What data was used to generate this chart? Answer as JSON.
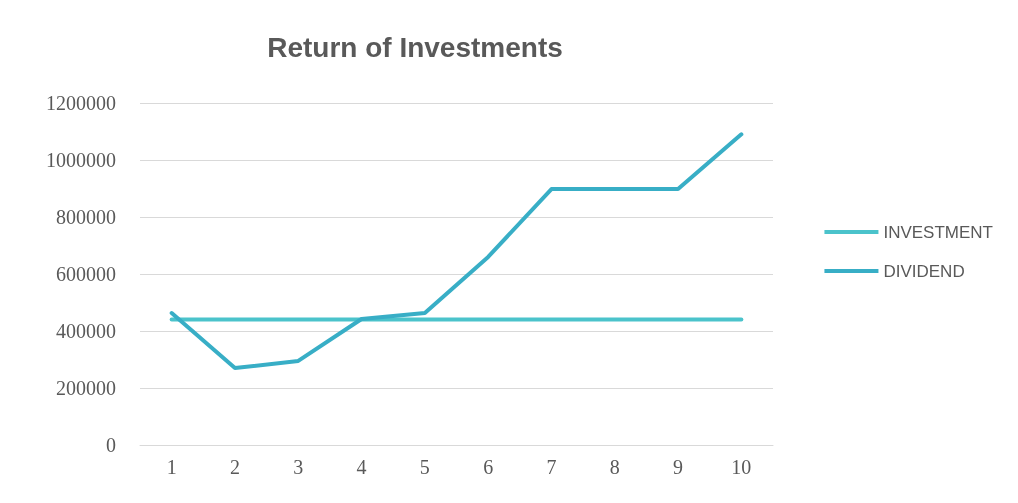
{
  "chart_data": {
    "type": "line",
    "title": "Return of Investments",
    "categories": [
      "1",
      "2",
      "3",
      "4",
      "5",
      "6",
      "7",
      "8",
      "9",
      "10"
    ],
    "series": [
      {
        "name": "INVESTMENT",
        "color": "#4bc3cb",
        "values": [
          440000,
          440000,
          440000,
          440000,
          440000,
          440000,
          440000,
          440000,
          440000,
          440000
        ]
      },
      {
        "name": "DIVIDEND",
        "color": "#38aec6",
        "values": [
          463000,
          270000,
          295000,
          442000,
          463000,
          660000,
          898000,
          898000,
          898000,
          1090000
        ]
      }
    ],
    "ylim": [
      0,
      1200000
    ],
    "yticks": [
      0,
      200000,
      400000,
      600000,
      800000,
      1000000,
      1200000
    ],
    "grid": "y",
    "legend": "right",
    "marker": "none",
    "line_style": "solid"
  }
}
